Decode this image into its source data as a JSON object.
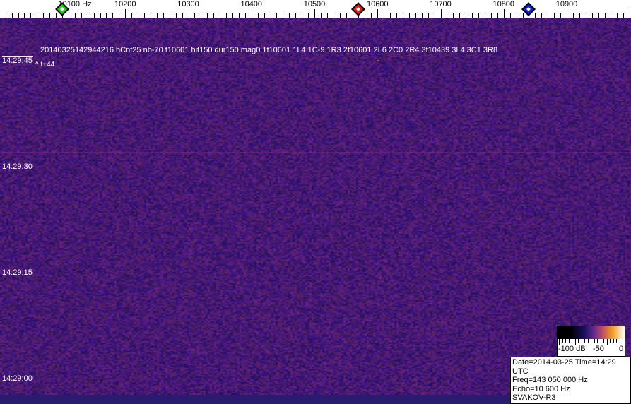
{
  "frequency_axis": {
    "labels": [
      {
        "value": 10100,
        "text": "10100 Hz"
      },
      {
        "value": 10200,
        "text": "10200"
      },
      {
        "value": 10300,
        "text": "10300"
      },
      {
        "value": 10400,
        "text": "10400"
      },
      {
        "value": 10500,
        "text": "10500"
      },
      {
        "value": 10600,
        "text": "10600"
      },
      {
        "value": 10700,
        "text": "10700"
      },
      {
        "value": 10800,
        "text": "10800"
      },
      {
        "value": 10900,
        "text": "10900"
      }
    ],
    "markers": [
      {
        "name": "green-marker",
        "freq": 10100,
        "color": "#22cc22"
      },
      {
        "name": "red-marker",
        "freq": 10570,
        "color": "#dd2222"
      },
      {
        "name": "blue-marker",
        "freq": 10840,
        "color": "#1122cc"
      }
    ]
  },
  "time_labels": [
    "14:29:45",
    "14:29:30",
    "14:29:15",
    "14:29:00"
  ],
  "detection_text": "20140325142944216 hCnt25 nb-70 f10601 hit150 dur150 mag0 1f10601 1L4 1C-9 1R3 2f10601 2L6 2C0 2R4 3f10439 3L4 3C1 3R8",
  "offset_text": "^ t+44",
  "color_scale": {
    "labels": [
      "-100 dB",
      "-50",
      "0"
    ]
  },
  "info": {
    "date_time": "Date=2014-03-25 Time=14:29 UTC",
    "freq": "Freq=143 050 000 Hz",
    "echo": "Echo=10 600 Hz",
    "station": "SVAKOV-R3"
  },
  "colors": {
    "background": "#2a1a70",
    "accent_line": "#a0288c"
  }
}
